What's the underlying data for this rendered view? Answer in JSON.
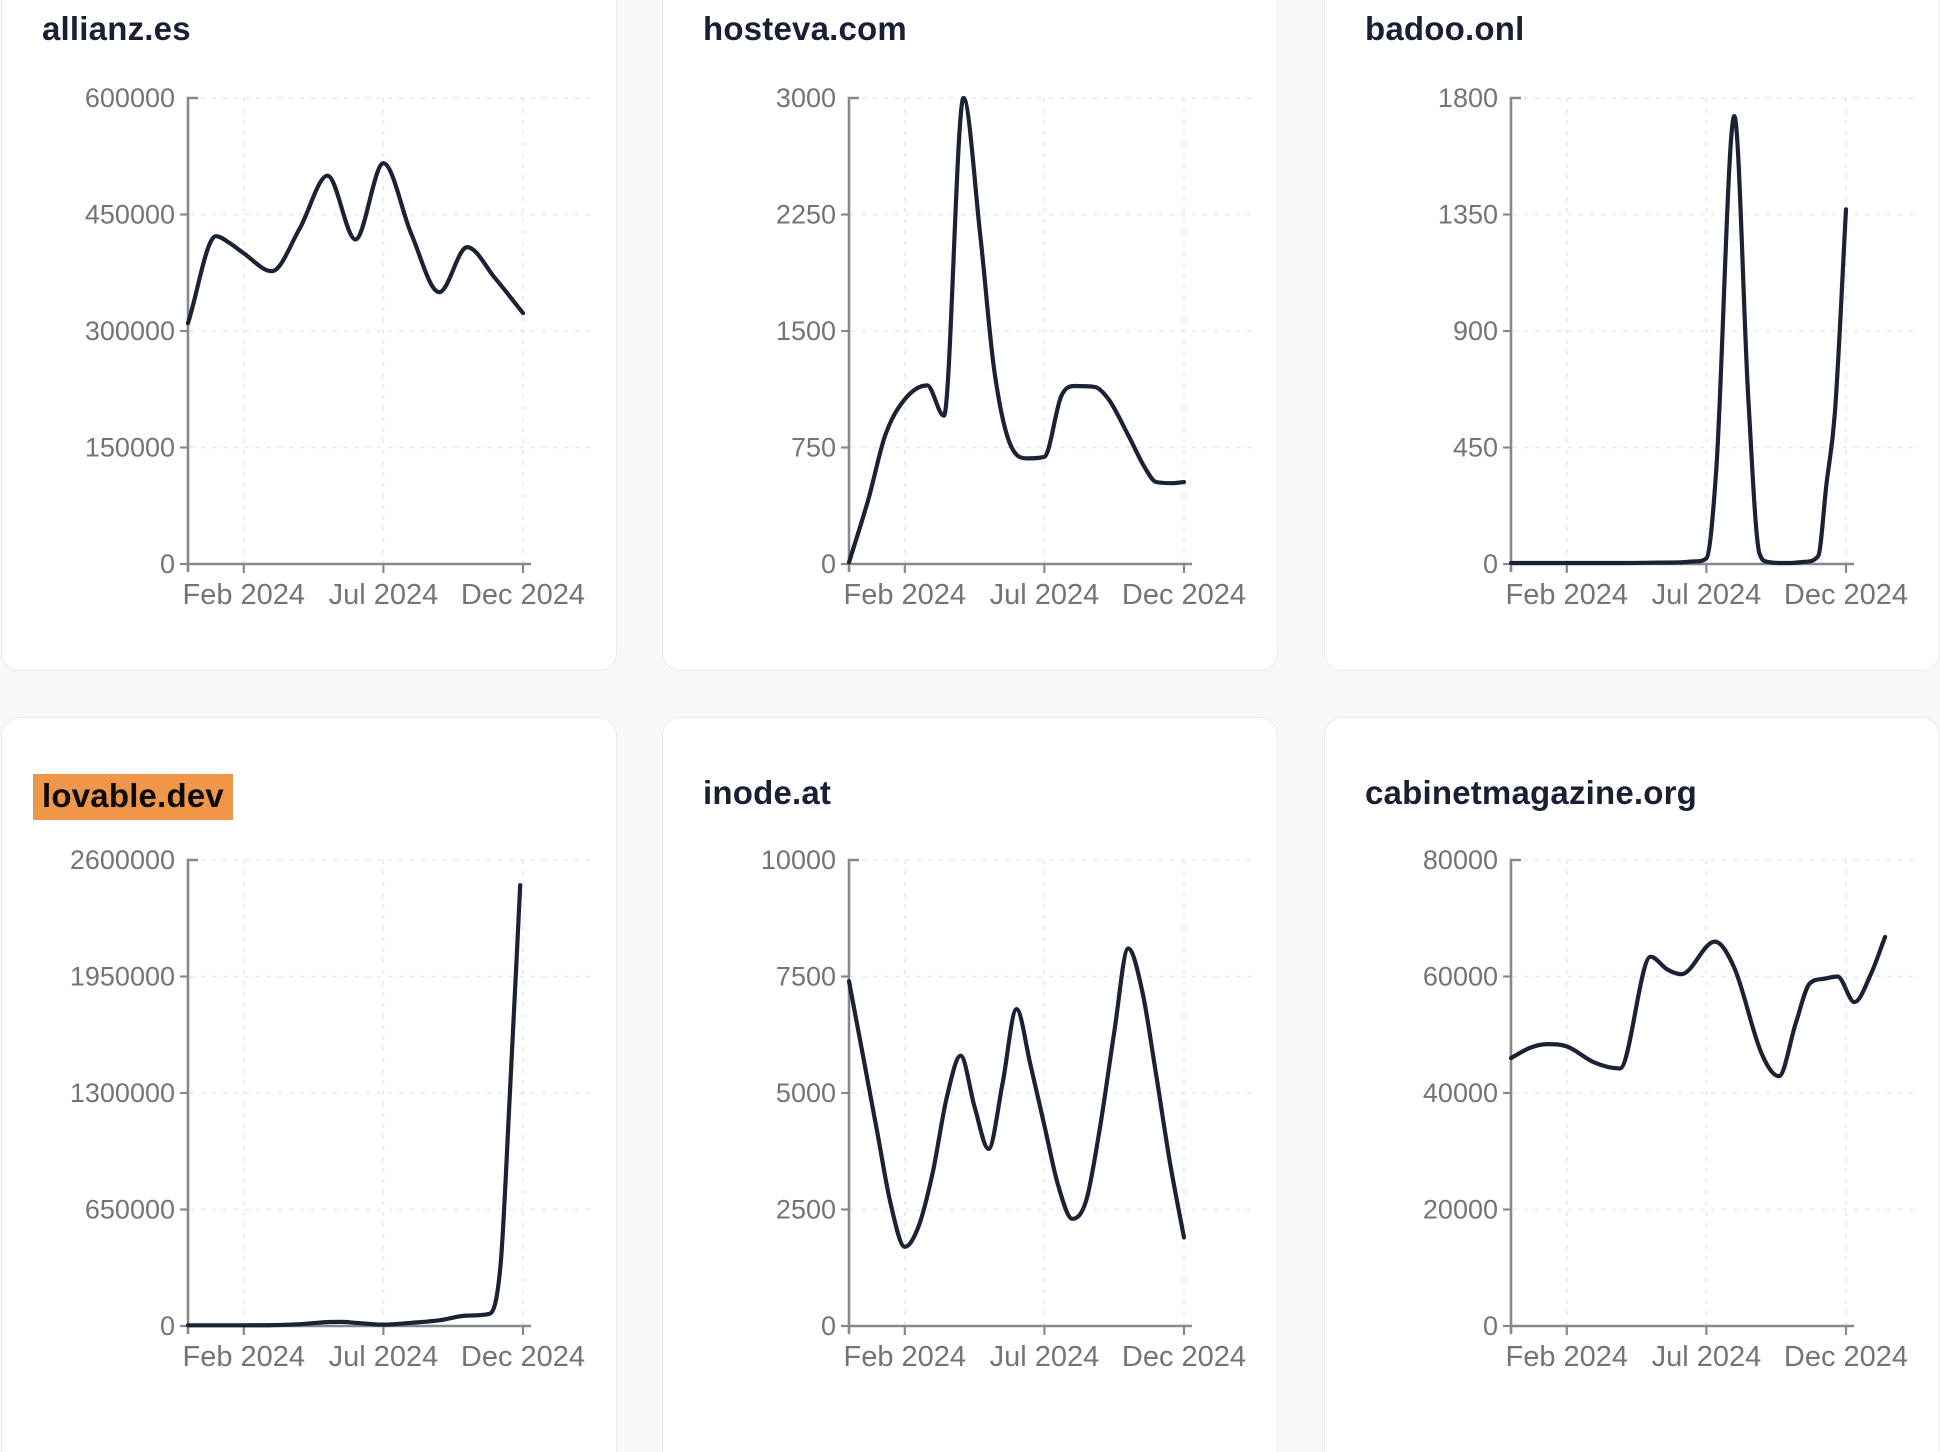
{
  "page": {
    "background": "#f7f8f9",
    "card_background": "#ffffff",
    "card_border": "#e9ebee",
    "title_color": "#1a2033",
    "highlight_color": "#f0964a",
    "highlight_text_color": "#0a0a0a",
    "line_color": "#1b2234",
    "axis_color": "#85888c",
    "grid_color": "#e5e7ea",
    "tick_label_color": "#717579"
  },
  "chart_data": [
    {
      "type": "line",
      "title": "allianz.es",
      "highlighted": false,
      "grid": "dashed",
      "x_unit": "months since Dec 2023",
      "x_ticks": [
        {
          "label": "Feb 2024",
          "m": 2
        },
        {
          "label": "Jul 2024",
          "m": 7
        },
        {
          "label": "Dec 2024",
          "m": 12
        }
      ],
      "y_ticks": [
        600000,
        450000,
        300000,
        150000,
        0
      ],
      "y_max": 600000,
      "points": [
        [
          0,
          310000
        ],
        [
          1,
          422000
        ],
        [
          1.5,
          413000
        ],
        [
          2,
          400000
        ],
        [
          3,
          377000
        ],
        [
          4,
          432000
        ],
        [
          5,
          500000
        ],
        [
          6,
          418000
        ],
        [
          7,
          516000
        ],
        [
          8,
          425000
        ],
        [
          9,
          350000
        ],
        [
          10,
          408000
        ],
        [
          11,
          368000
        ],
        [
          12,
          323000
        ]
      ]
    },
    {
      "type": "line",
      "title": "hosteva.com",
      "highlighted": false,
      "grid": "dashed",
      "x_unit": "months since Dec 2023",
      "x_ticks": [
        {
          "label": "Feb 2024",
          "m": 2
        },
        {
          "label": "Jul 2024",
          "m": 7
        },
        {
          "label": "Dec 2024",
          "m": 12
        }
      ],
      "y_ticks": [
        3000,
        2250,
        1500,
        750,
        0
      ],
      "y_max": 3000,
      "points": [
        [
          0,
          10
        ],
        [
          0.7,
          420
        ],
        [
          1.3,
          830
        ],
        [
          2,
          1060
        ],
        [
          2.8,
          1150
        ],
        [
          3.4,
          955
        ],
        [
          4.1,
          3000
        ],
        [
          4.7,
          2120
        ],
        [
          5.2,
          1250
        ],
        [
          5.8,
          760
        ],
        [
          6.4,
          680
        ],
        [
          7,
          690
        ],
        [
          7.6,
          1080
        ],
        [
          8.1,
          1146
        ],
        [
          8.8,
          1140
        ],
        [
          9.3,
          1060
        ],
        [
          10,
          830
        ],
        [
          10.6,
          620
        ],
        [
          11,
          528
        ],
        [
          11.6,
          520
        ],
        [
          12,
          528
        ]
      ]
    },
    {
      "type": "line",
      "title": "badoo.onl",
      "highlighted": false,
      "grid": "dashed",
      "x_unit": "months since Dec 2023",
      "x_ticks": [
        {
          "label": "Feb 2024",
          "m": 2
        },
        {
          "label": "Jul 2024",
          "m": 7
        },
        {
          "label": "Dec 2024",
          "m": 12
        }
      ],
      "y_ticks": [
        1800,
        1350,
        900,
        450,
        0
      ],
      "y_max": 1800,
      "points": [
        [
          0,
          4
        ],
        [
          1,
          4
        ],
        [
          2,
          4
        ],
        [
          3,
          4
        ],
        [
          4,
          4
        ],
        [
          5,
          5
        ],
        [
          6,
          6
        ],
        [
          6.6,
          10
        ],
        [
          7,
          22
        ],
        [
          7.35,
          360
        ],
        [
          8,
          1730
        ],
        [
          8.5,
          640
        ],
        [
          8.9,
          40
        ],
        [
          9.2,
          8
        ],
        [
          9.6,
          4
        ],
        [
          10,
          4
        ],
        [
          10.5,
          8
        ],
        [
          11,
          30
        ],
        [
          11.3,
          310
        ],
        [
          11.6,
          580
        ],
        [
          12,
          1370
        ]
      ]
    },
    {
      "type": "line",
      "title": "lovable.dev",
      "highlighted": true,
      "grid": "dashed",
      "x_unit": "months since Dec 2023",
      "x_ticks": [
        {
          "label": "Feb 2024",
          "m": 2
        },
        {
          "label": "Jul 2024",
          "m": 7
        },
        {
          "label": "Dec 2024",
          "m": 12
        }
      ],
      "y_ticks": [
        2600000,
        1950000,
        1300000,
        650000,
        0
      ],
      "y_max": 2600000,
      "points": [
        [
          0,
          4000
        ],
        [
          1,
          4000
        ],
        [
          2,
          4000
        ],
        [
          3,
          5000
        ],
        [
          4,
          10000
        ],
        [
          5,
          22000
        ],
        [
          5.5,
          23000
        ],
        [
          6,
          18000
        ],
        [
          7,
          8000
        ],
        [
          8,
          18000
        ],
        [
          9,
          32000
        ],
        [
          10,
          58000
        ],
        [
          10.8,
          68000
        ],
        [
          11.2,
          350000
        ],
        [
          11.5,
          1200000
        ],
        [
          11.9,
          2460000
        ]
      ]
    },
    {
      "type": "line",
      "title": "inode.at",
      "highlighted": false,
      "grid": "dashed",
      "x_unit": "months since Dec 2023",
      "x_ticks": [
        {
          "label": "Feb 2024",
          "m": 2
        },
        {
          "label": "Jul 2024",
          "m": 7
        },
        {
          "label": "Dec 2024",
          "m": 12
        }
      ],
      "y_ticks": [
        10000,
        7500,
        5000,
        2500,
        0
      ],
      "y_max": 10000,
      "points": [
        [
          0,
          7400
        ],
        [
          0.5,
          5800
        ],
        [
          1,
          4200
        ],
        [
          1.5,
          2600
        ],
        [
          2,
          1700
        ],
        [
          2.5,
          2150
        ],
        [
          3,
          3300
        ],
        [
          3.5,
          4900
        ],
        [
          4,
          5800
        ],
        [
          4.5,
          4700
        ],
        [
          5,
          3800
        ],
        [
          5.5,
          5200
        ],
        [
          6,
          6800
        ],
        [
          6.5,
          5600
        ],
        [
          7,
          4300
        ],
        [
          7.5,
          3000
        ],
        [
          8,
          2300
        ],
        [
          8.5,
          2700
        ],
        [
          9,
          4300
        ],
        [
          9.5,
          6300
        ],
        [
          10,
          8100
        ],
        [
          10.5,
          7200
        ],
        [
          11,
          5400
        ],
        [
          11.5,
          3500
        ],
        [
          12,
          1900
        ]
      ]
    },
    {
      "type": "line",
      "title": "cabinetmagazine.org",
      "highlighted": false,
      "grid": "dashed",
      "x_unit": "months since Dec 2023",
      "x_ticks": [
        {
          "label": "Feb 2024",
          "m": 2
        },
        {
          "label": "Jul 2024",
          "m": 7
        },
        {
          "label": "Dec 2024",
          "m": 12
        }
      ],
      "y_ticks": [
        80000,
        60000,
        40000,
        20000,
        0
      ],
      "y_max": 80000,
      "points": [
        [
          0,
          46000
        ],
        [
          0.7,
          47800
        ],
        [
          1.3,
          48400
        ],
        [
          2,
          48000
        ],
        [
          3,
          45200
        ],
        [
          3.9,
          44200
        ],
        [
          5,
          63400
        ],
        [
          5.6,
          61200
        ],
        [
          6.1,
          60400
        ],
        [
          7.3,
          66000
        ],
        [
          8,
          61500
        ],
        [
          9,
          46500
        ],
        [
          9.6,
          42900
        ],
        [
          10.2,
          52000
        ],
        [
          10.7,
          58800
        ],
        [
          11.2,
          59600
        ],
        [
          11.7,
          60000
        ],
        [
          12.3,
          55600
        ],
        [
          12.9,
          60500
        ],
        [
          13.4,
          66800
        ]
      ]
    }
  ]
}
